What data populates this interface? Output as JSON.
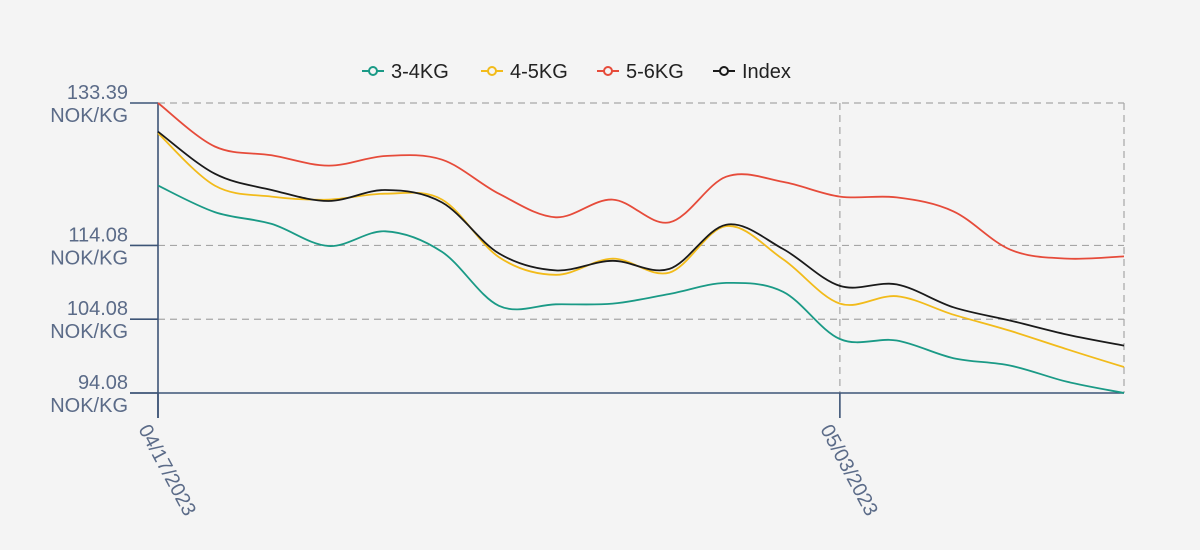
{
  "chart_data": {
    "type": "line",
    "title": "",
    "xlabel": "",
    "ylabel": "",
    "x": [
      "04/17/2023",
      "04/18/2023",
      "04/19/2023",
      "04/20/2023",
      "04/21/2023",
      "04/24/2023",
      "04/25/2023",
      "04/26/2023",
      "04/27/2023",
      "04/28/2023",
      "05/01/2023",
      "05/02/2023",
      "05/03/2023",
      "05/04/2023",
      "05/05/2023",
      "05/08/2023",
      "05/09/2023",
      "05/10/2023"
    ],
    "x_ticks": [
      {
        "index": 0,
        "label": "04/17/2023"
      },
      {
        "index": 12,
        "label": "05/03/2023"
      }
    ],
    "y_ticks": [
      {
        "value": 133.39,
        "line1": "133.39",
        "line2": "NOK/KG"
      },
      {
        "value": 114.08,
        "line1": "114.08",
        "line2": "NOK/KG"
      },
      {
        "value": 104.08,
        "line1": "104.08",
        "line2": "NOK/KG"
      },
      {
        "value": 94.08,
        "line1": "94.08",
        "line2": "NOK/KG"
      }
    ],
    "ylim": [
      94.08,
      133.39
    ],
    "grid": true,
    "legend": "top-center",
    "series": [
      {
        "name": "3-4KG",
        "color": "#1a9a86",
        "values": [
          122.2,
          118.6,
          117.0,
          114.0,
          116.0,
          113.2,
          105.9,
          106.1,
          106.2,
          107.5,
          109.0,
          107.8,
          101.4,
          101.2,
          98.8,
          97.8,
          95.6,
          94.08
        ]
      },
      {
        "name": "4-5KG",
        "color": "#f2bb1a",
        "values": [
          129.3,
          122.2,
          120.7,
          120.3,
          121.1,
          120.3,
          112.5,
          110.1,
          112.3,
          110.4,
          116.7,
          112.2,
          106.2,
          107.2,
          104.7,
          102.5,
          100.0,
          97.6
        ]
      },
      {
        "name": "5-6KG",
        "color": "#e64b3a",
        "values": [
          133.39,
          127.5,
          126.3,
          124.9,
          126.2,
          125.7,
          121.1,
          117.9,
          120.3,
          117.2,
          123.4,
          122.7,
          120.7,
          120.6,
          118.7,
          113.5,
          112.3,
          112.6
        ]
      },
      {
        "name": "Index",
        "color": "#1a1a1a",
        "values": [
          129.5,
          123.8,
          121.6,
          120.1,
          121.6,
          119.9,
          113.0,
          110.7,
          112.0,
          110.9,
          116.9,
          113.6,
          108.6,
          108.8,
          105.7,
          103.9,
          102.0,
          100.5
        ]
      }
    ]
  }
}
